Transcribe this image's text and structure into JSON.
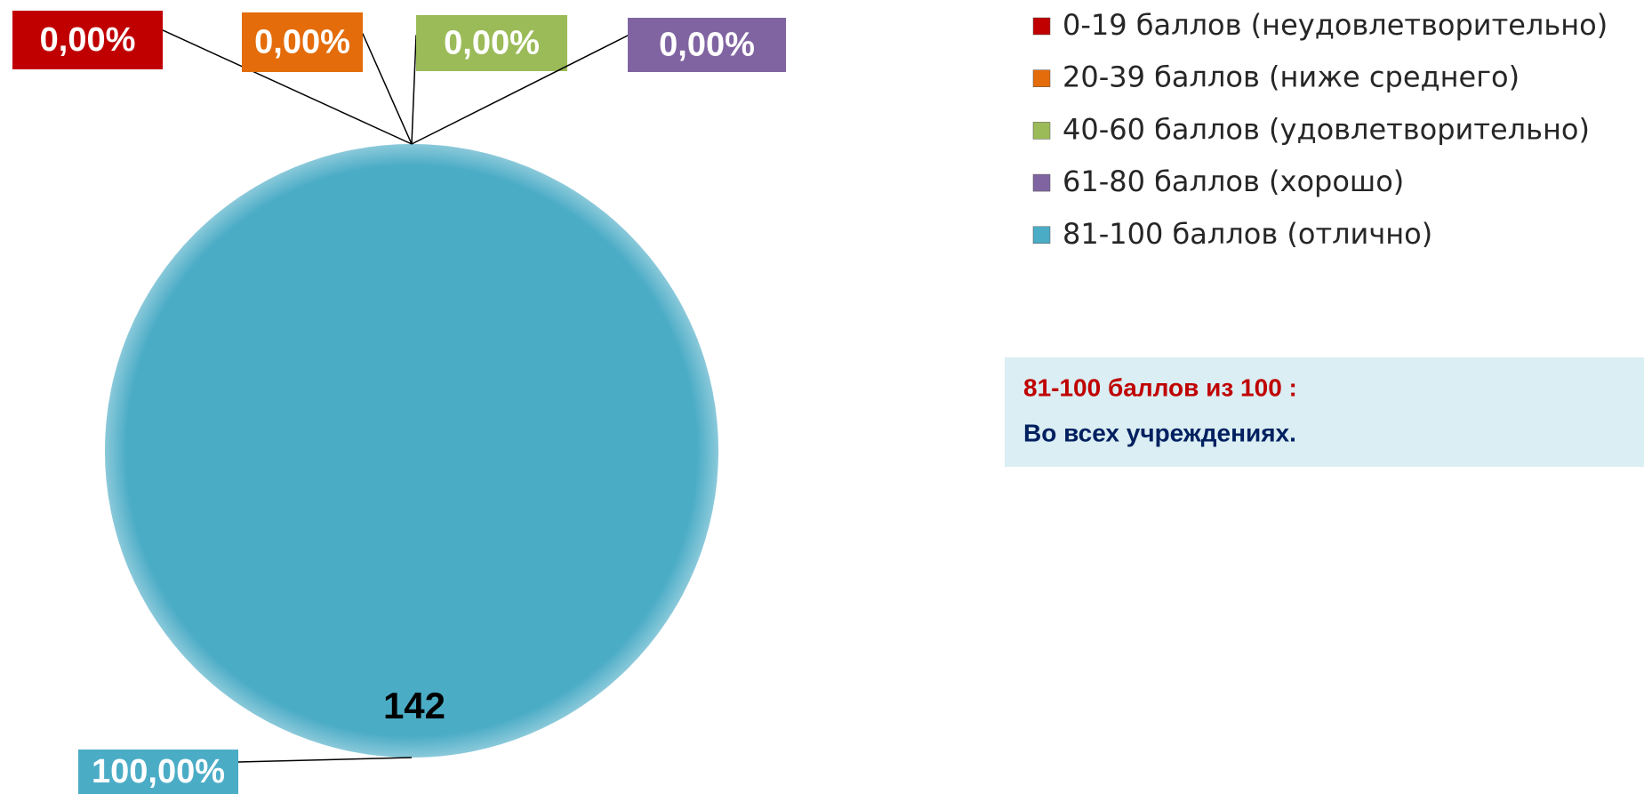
{
  "chart_data": {
    "type": "pie",
    "categories": [
      "0-19 баллов (неудовлетворительно)",
      "20-39 баллов (ниже среднего)",
      "40-60 баллов (удовлетворительно)",
      "61-80 баллов (хорошо)",
      "81-100 баллов (отлично)"
    ],
    "values": [
      0,
      0,
      0,
      0,
      100
    ],
    "value_labels": [
      "0,00%",
      "0,00%",
      "0,00%",
      "0,00%",
      "100,00%"
    ],
    "counts": [
      null,
      null,
      null,
      null,
      142
    ],
    "colors": [
      "#c00000",
      "#e46c0a",
      "#9bbb59",
      "#8064a2",
      "#4bacc6"
    ],
    "legend": "right",
    "annotations": [
      "81-100 баллов из 100 :",
      "Во всех учреждениях."
    ]
  }
}
